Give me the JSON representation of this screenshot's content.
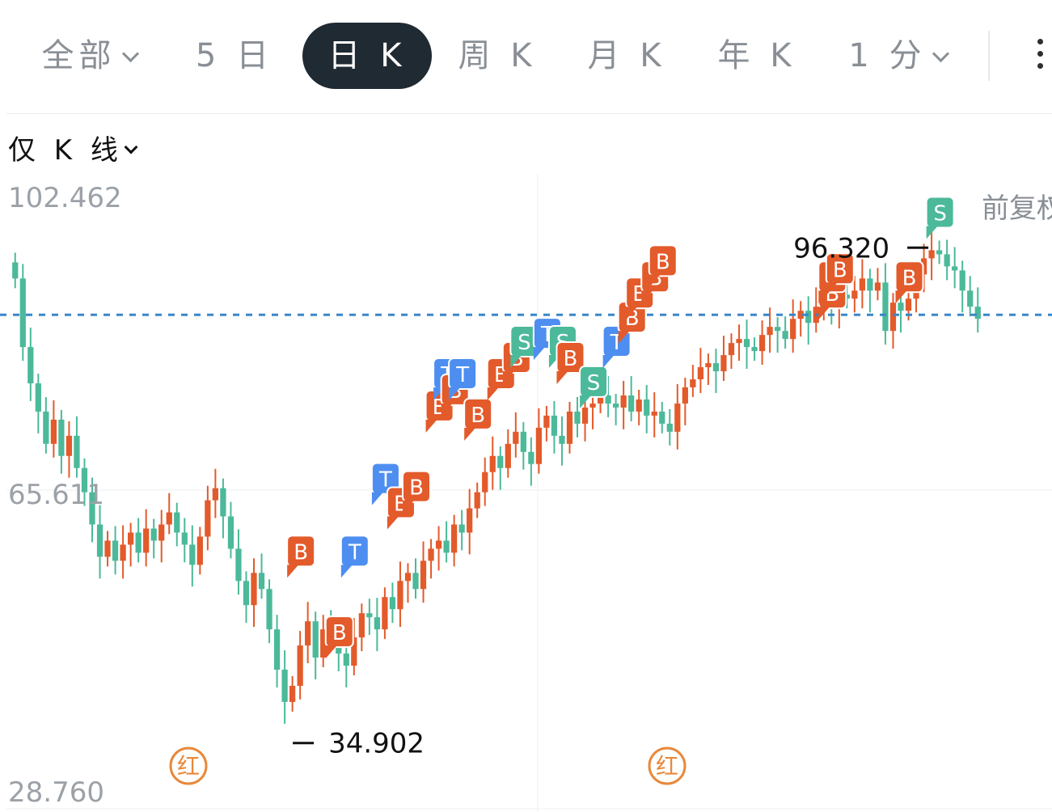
{
  "tabs": [
    {
      "label": "全部",
      "has_dropdown": true
    },
    {
      "label": "5 日",
      "has_dropdown": false
    },
    {
      "label": "日 K",
      "has_dropdown": false,
      "active": true
    },
    {
      "label": "周 K",
      "has_dropdown": false
    },
    {
      "label": "月 K",
      "has_dropdown": false
    },
    {
      "label": "年 K",
      "has_dropdown": false
    },
    {
      "label": "1 分",
      "has_dropdown": true
    }
  ],
  "more_icon": "vertical-ellipsis-icon",
  "mode_selector": {
    "label": "仅 K 线",
    "icon": "chevron-down-icon"
  },
  "adjust_label": "前复权",
  "colors": {
    "up": "#e35a2b",
    "down": "#4bb99a",
    "trade_t": "#4d8ef0",
    "current_line": "#3a86c8",
    "red_badge": "#e8883a",
    "active_tab_bg": "#1f2a33"
  },
  "chart_data": {
    "type": "candlestick",
    "ylim": [
      28.76,
      102.462
    ],
    "y_tick_labels": [
      "102.462",
      "65.611",
      "28.760"
    ],
    "max_label": "96.320",
    "min_label": "34.902",
    "current_price_line": 88.0,
    "x_divider_count": 2,
    "closes": [
      92.5,
      84.0,
      79.5,
      76.0,
      72.0,
      75.0,
      70.5,
      73.0,
      69.0,
      66.0,
      62.0,
      58.0,
      60.0,
      57.5,
      59.5,
      61.0,
      58.5,
      61.5,
      60.0,
      62.0,
      63.5,
      61.0,
      59.5,
      57.0,
      60.5,
      65.0,
      66.5,
      63.0,
      59.0,
      55.0,
      52.0,
      56.0,
      54.0,
      49.0,
      44.0,
      40.0,
      42.0,
      47.0,
      50.0,
      45.5,
      49.0,
      48.5,
      46.0,
      44.5,
      48.0,
      51.0,
      50.5,
      49.0,
      53.0,
      51.5,
      55.0,
      56.0,
      54.0,
      57.5,
      59.0,
      60.0,
      58.5,
      62.0,
      61.0,
      64.0,
      66.0,
      68.5,
      70.5,
      69.0,
      72.0,
      73.5,
      71.0,
      69.5,
      74.0,
      75.5,
      73.0,
      72.0,
      76.0,
      74.5,
      76.5,
      77.0,
      78.0,
      77.0,
      76.5,
      78.0,
      76.0,
      77.5,
      75.5,
      76.0,
      74.5,
      73.5,
      77.0,
      79.0,
      80.0,
      81.5,
      82.0,
      81.0,
      83.0,
      84.5,
      85.0,
      84.0,
      83.5,
      85.5,
      86.5,
      86.0,
      85.0,
      87.5,
      88.5,
      87.0,
      89.0,
      90.0,
      89.0,
      90.5,
      90.0,
      91.0,
      92.5,
      91.0,
      92.0,
      86.0,
      89.5,
      88.5,
      90.0,
      93.0,
      95.0,
      96.0,
      95.5,
      94.0,
      93.5,
      91.0,
      89.0,
      87.5
    ],
    "buy_labels": [
      "B",
      "T",
      "S"
    ]
  },
  "date_badges": [
    {
      "label": "红"
    },
    {
      "label": "红"
    }
  ]
}
